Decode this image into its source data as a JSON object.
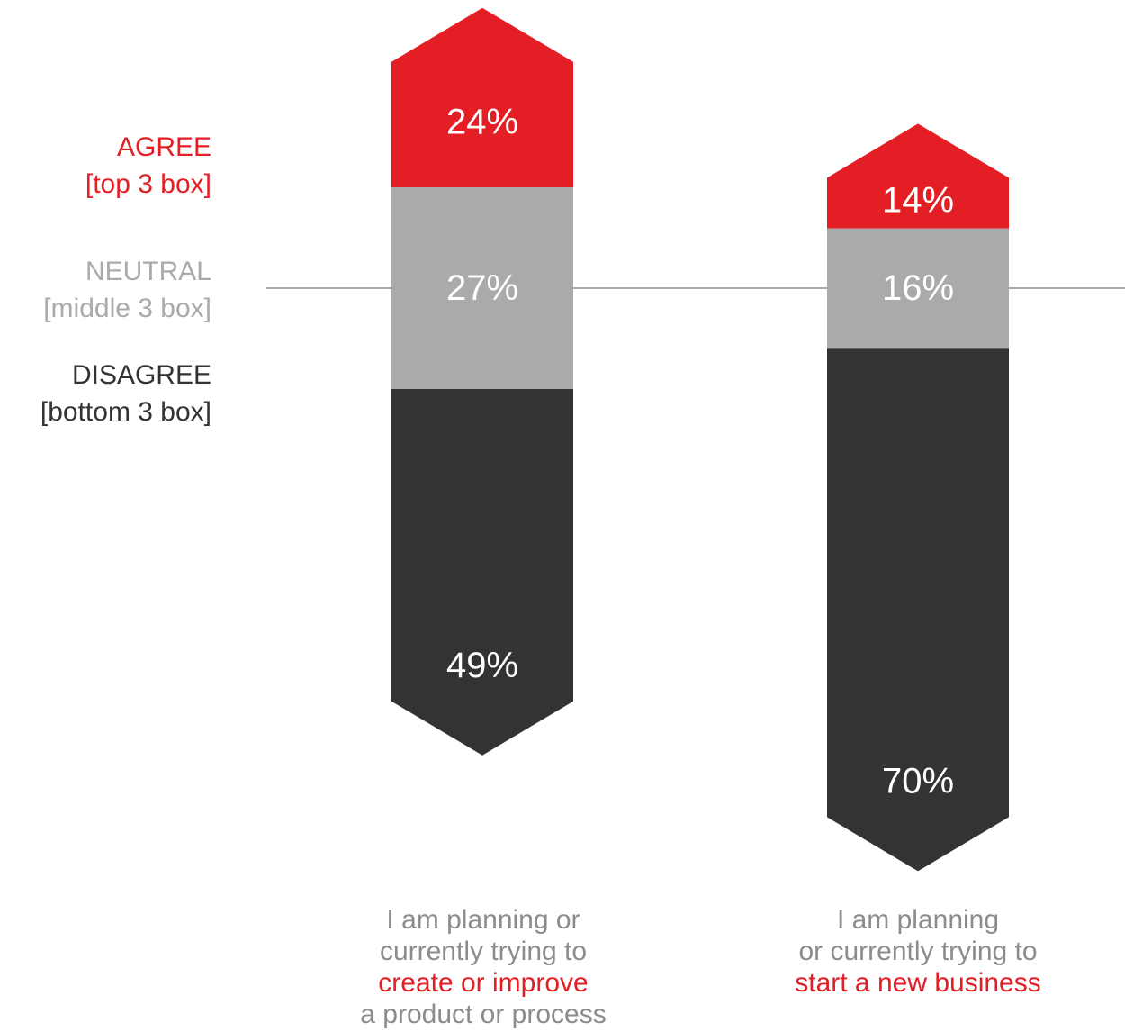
{
  "legend": {
    "agree": {
      "title": "AGREE",
      "subtitle": "[top 3 box]",
      "color": "#e31e24"
    },
    "neutral": {
      "title": "NEUTRAL",
      "subtitle": "[middle 3 box]",
      "color": "#aaaaaa"
    },
    "disagree": {
      "title": "DISAGREE",
      "subtitle": "[bottom 3 box]",
      "color": "#333333"
    }
  },
  "captions": [
    {
      "line1": "I am planning or",
      "line2": "currently trying to",
      "highlight": "create or improve",
      "line4": "a product or process"
    },
    {
      "line1": "I am planning",
      "line2": "or currently trying to",
      "highlight": "start a new business",
      "line4": ""
    }
  ],
  "chart_data": {
    "type": "bar",
    "stacked": true,
    "baseline": "neutral segment centered on a horizontal reference line",
    "categories": [
      "I am planning or currently trying to create or improve a product or process",
      "I am planning or currently trying to start a new business"
    ],
    "series": [
      {
        "name": "AGREE [top 3 box]",
        "values": [
          24,
          14
        ],
        "labels": [
          "24%",
          "14%"
        ],
        "color": "#e31e24"
      },
      {
        "name": "NEUTRAL [middle 3 box]",
        "values": [
          27,
          16
        ],
        "labels": [
          "27%",
          "16%"
        ],
        "color": "#aaaaaa"
      },
      {
        "name": "DISAGREE [bottom 3 box]",
        "values": [
          49,
          70
        ],
        "labels": [
          "49%",
          "70%"
        ],
        "color": "#333333"
      }
    ],
    "label_color": "#ffffff"
  }
}
